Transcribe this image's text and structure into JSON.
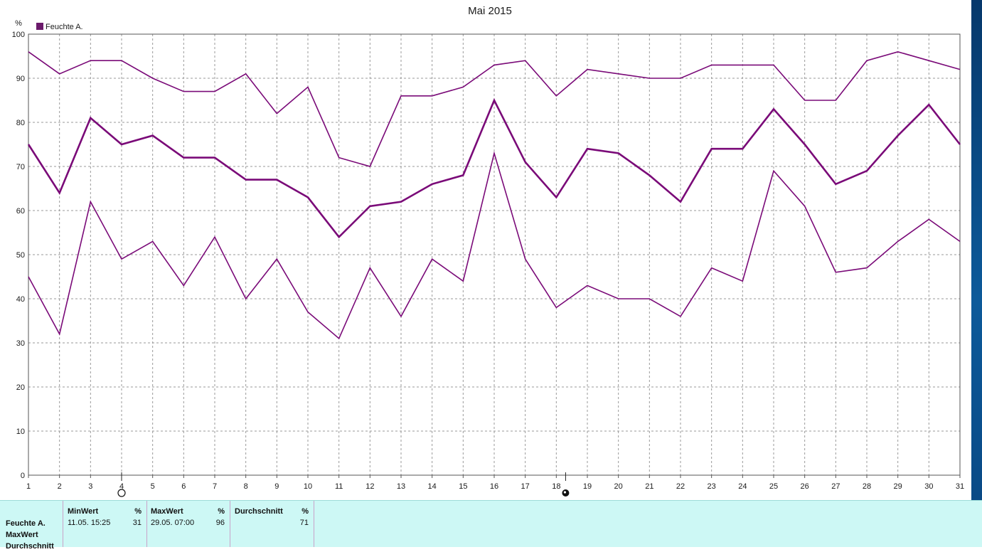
{
  "chart_data": {
    "type": "line",
    "title": "Mai 2015",
    "ylabel": "%",
    "ylim": [
      0,
      100
    ],
    "yticks": [
      0,
      10,
      20,
      30,
      40,
      50,
      60,
      70,
      80,
      90,
      100
    ],
    "x": [
      1,
      2,
      3,
      4,
      5,
      6,
      7,
      8,
      9,
      10,
      11,
      12,
      13,
      14,
      15,
      16,
      17,
      18,
      19,
      20,
      21,
      22,
      23,
      24,
      25,
      26,
      27,
      28,
      29,
      30,
      31
    ],
    "grid": true,
    "legend": {
      "placement": "top-left",
      "entries": [
        "Feuchte A."
      ]
    },
    "series": [
      {
        "name": "",
        "values": [
          96,
          91,
          94,
          94,
          90,
          87,
          87,
          91,
          82,
          88,
          72,
          70,
          86,
          86,
          88,
          93,
          94,
          86,
          92,
          91,
          90,
          90,
          93,
          93,
          93,
          85,
          85,
          94,
          96,
          94,
          92
        ]
      },
      {
        "name": "",
        "values": [
          75,
          64,
          81,
          75,
          77,
          72,
          72,
          67,
          67,
          63,
          54,
          61,
          62,
          66,
          68,
          85,
          71,
          63,
          74,
          73,
          68,
          62,
          74,
          74,
          83,
          75,
          66,
          69,
          77,
          84,
          75
        ]
      },
      {
        "name": "",
        "values": [
          45,
          32,
          62,
          49,
          53,
          43,
          54,
          40,
          49,
          37,
          31,
          47,
          36,
          49,
          44,
          73,
          49,
          38,
          43,
          40,
          40,
          36,
          47,
          44,
          69,
          61,
          46,
          47,
          53,
          58,
          53
        ]
      }
    ],
    "colors": {
      "line": "#7a0a78",
      "grid": "#9a9a9a",
      "legend_box": "#6b1a6b"
    },
    "markers": [
      {
        "x": 4.0,
        "symbol": "new-moon-outline"
      },
      {
        "x": 18.3,
        "symbol": "full-moon-dot"
      }
    ]
  },
  "stats": {
    "row_labels": [
      "Feuchte A.",
      "MaxWert",
      "Durchschnitt"
    ],
    "columns": [
      {
        "header": "MinWert",
        "unit": "%",
        "datetime": "11.05.  15:25",
        "value": "31"
      },
      {
        "header": "MaxWert",
        "unit": "%",
        "datetime": "29.05.  07:00",
        "value": "96"
      },
      {
        "header": "Durchschnitt",
        "unit": "%",
        "datetime": "",
        "value": "71"
      }
    ]
  }
}
